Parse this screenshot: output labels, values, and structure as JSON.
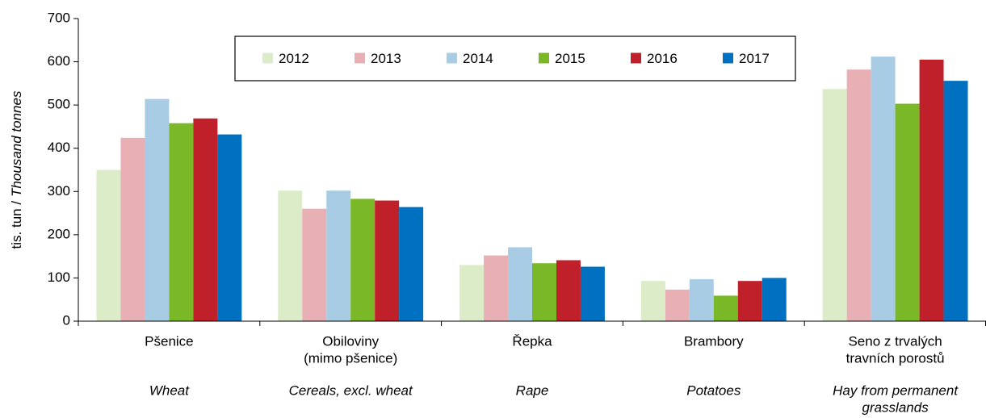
{
  "chart_data": {
    "type": "bar",
    "ylabel": [
      "tis. tun /",
      "Thousand tonnes"
    ],
    "categories": [
      [
        "Pšenice"
      ],
      [
        "Obiloviny",
        "(mimo pšenice)"
      ],
      [
        "Řepka"
      ],
      [
        "Brambory"
      ],
      [
        "Seno z trvalých",
        "travních porostů"
      ]
    ],
    "categories_en": [
      [
        "Wheat"
      ],
      [
        "Cereals, excl. wheat"
      ],
      [
        "Rape"
      ],
      [
        "Potatoes"
      ],
      [
        "Hay from permanent",
        "grasslands"
      ]
    ],
    "series": [
      {
        "name": "2012",
        "color": "#dcecc8",
        "values": [
          350,
          302,
          130,
          93,
          537
        ]
      },
      {
        "name": "2013",
        "color": "#e8b0b4",
        "values": [
          424,
          260,
          152,
          73,
          582
        ]
      },
      {
        "name": "2014",
        "color": "#a8cce4",
        "values": [
          514,
          302,
          171,
          97,
          612
        ]
      },
      {
        "name": "2015",
        "color": "#7ab828",
        "values": [
          458,
          283,
          134,
          59,
          503
        ]
      },
      {
        "name": "2016",
        "color": "#c0202a",
        "values": [
          469,
          279,
          141,
          93,
          605
        ]
      },
      {
        "name": "2017",
        "color": "#0070c0",
        "values": [
          432,
          264,
          126,
          100,
          556
        ]
      }
    ],
    "ylim": [
      0,
      700
    ],
    "yticks": [
      0,
      100,
      200,
      300,
      400,
      500,
      600,
      700
    ],
    "grid": false,
    "legend": "top"
  }
}
